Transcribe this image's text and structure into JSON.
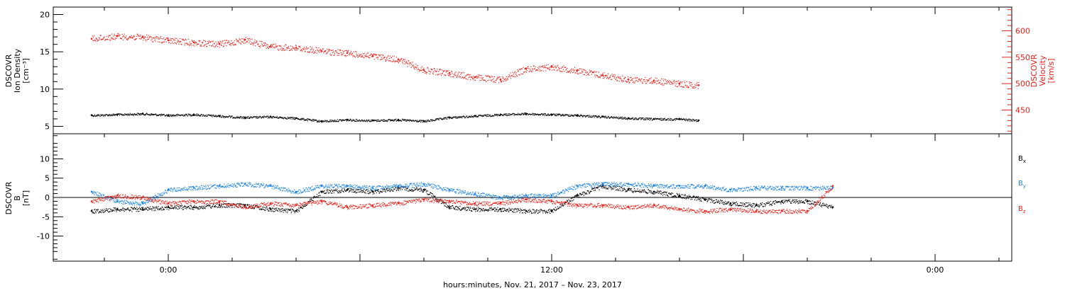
{
  "chart_data": [
    {
      "type": "scatter",
      "panel": "top",
      "ylabel_left": [
        "DSCOVR",
        "Ion Density",
        "[cm⁻³]"
      ],
      "ylabel_right": [
        "DSCOVR",
        "Velocity",
        "[km/s]"
      ],
      "ylim_left": [
        4,
        21
      ],
      "ylim_right": [
        405,
        645
      ],
      "left_ticks": [
        "5",
        "10",
        "15",
        "20"
      ],
      "left_tick_values": [
        5,
        10,
        15,
        20
      ],
      "right_ticks": [
        "450",
        "500",
        "550",
        "600"
      ],
      "right_tick_values": [
        450,
        500,
        550,
        600
      ],
      "series": [
        {
          "name": "Ion Density",
          "axis": "left",
          "color": "#000000",
          "x": [
            -6,
            -4,
            -2,
            0,
            2,
            4,
            6,
            8,
            10,
            12,
            14,
            16,
            18,
            20,
            22,
            24,
            26,
            28,
            30,
            32,
            34,
            36,
            38,
            40,
            41.5
          ],
          "y": [
            6.5,
            6.6,
            6.7,
            6.5,
            6.6,
            6.4,
            6.2,
            6.3,
            6.1,
            5.7,
            5.9,
            5.8,
            5.9,
            5.7,
            6.2,
            6.4,
            6.6,
            6.7,
            6.6,
            6.5,
            6.3,
            6.1,
            6.0,
            6.0,
            5.8
          ]
        },
        {
          "name": "Velocity",
          "axis": "right",
          "color": "#e8221a",
          "x": [
            -6,
            -4,
            -2,
            0,
            2,
            4,
            6,
            8,
            10,
            12,
            14,
            16,
            18,
            20,
            22,
            24,
            26,
            28,
            30,
            32,
            34,
            36,
            38,
            40,
            41.5
          ],
          "y": [
            585,
            590,
            588,
            582,
            578,
            575,
            583,
            570,
            568,
            562,
            558,
            552,
            546,
            526,
            520,
            512,
            508,
            528,
            532,
            525,
            516,
            508,
            506,
            500,
            497
          ]
        }
      ]
    },
    {
      "type": "scatter",
      "panel": "bottom",
      "ylabel_left": [
        "DSCOVR",
        "B",
        "[nT]"
      ],
      "ylim": [
        -16.5,
        16.5
      ],
      "left_ticks": [
        "-10",
        "-5",
        "0",
        "5",
        "10"
      ],
      "left_tick_values": [
        -10,
        -5,
        0,
        5,
        10
      ],
      "legend": [
        "Bx",
        "By",
        "Bz"
      ],
      "legend_placement": "right",
      "zero_line": true,
      "series": [
        {
          "name": "Bx",
          "color": "#000000",
          "x": [
            -6,
            -4,
            -2,
            0,
            2,
            4,
            6,
            8,
            10,
            12,
            14,
            16,
            18,
            20,
            22,
            24,
            26,
            28,
            30,
            32,
            34,
            36,
            38,
            40,
            42,
            44,
            46,
            48,
            50,
            52
          ],
          "y": [
            -3.5,
            -3.0,
            -3.0,
            -2.5,
            -2.5,
            -2.0,
            -2.0,
            -3.0,
            -3.5,
            1.5,
            2.0,
            1.5,
            2.5,
            2.0,
            -2.5,
            -3.0,
            -3.0,
            -3.5,
            -3.5,
            0.5,
            3.0,
            2.0,
            1.5,
            0.5,
            -0.5,
            -1.5,
            -2.0,
            -1.0,
            -1.0,
            -2.5
          ]
        },
        {
          "name": "By",
          "color": "#1a82e0",
          "x": [
            -6,
            -4,
            -2,
            0,
            2,
            4,
            6,
            8,
            10,
            12,
            14,
            16,
            18,
            20,
            22,
            24,
            26,
            28,
            30,
            32,
            34,
            36,
            38,
            40,
            42,
            44,
            46,
            48,
            50,
            52
          ],
          "y": [
            1.5,
            -1.0,
            -1.5,
            2.0,
            2.5,
            3.0,
            3.5,
            3.0,
            1.5,
            3.0,
            3.0,
            2.5,
            3.0,
            3.5,
            2.0,
            1.0,
            0.0,
            0.5,
            0.5,
            3.0,
            3.5,
            3.5,
            3.0,
            3.0,
            3.0,
            2.0,
            2.5,
            2.5,
            2.5,
            2.5
          ]
        },
        {
          "name": "Bz",
          "color": "#e8221a",
          "x": [
            -6,
            -4,
            -2,
            0,
            2,
            4,
            6,
            8,
            10,
            12,
            14,
            16,
            18,
            20,
            22,
            24,
            26,
            28,
            30,
            32,
            34,
            36,
            38,
            40,
            42,
            44,
            46,
            48,
            50,
            52
          ],
          "y": [
            -1.0,
            0.5,
            0.0,
            -1.5,
            -1.0,
            -1.0,
            -2.5,
            -1.5,
            -2.0,
            -1.0,
            -2.5,
            -2.0,
            -1.5,
            -0.5,
            -1.0,
            -1.5,
            -1.5,
            -0.5,
            -1.0,
            -2.0,
            -2.0,
            -2.5,
            -2.0,
            -3.0,
            -3.5,
            -3.0,
            -3.5,
            -3.5,
            -3.5,
            3.0
          ]
        }
      ]
    }
  ],
  "time_axis": {
    "xlim": [
      -9,
      66
    ],
    "major_labels": [
      {
        "x": 0,
        "label": "0:00"
      },
      {
        "x": 30,
        "label": "12:00"
      },
      {
        "x": 60,
        "label": "0:00"
      }
    ],
    "minor_tick_step": 5
  },
  "xlabel": "hours:minutes, Nov. 21, 2017 – Nov. 23, 2017"
}
